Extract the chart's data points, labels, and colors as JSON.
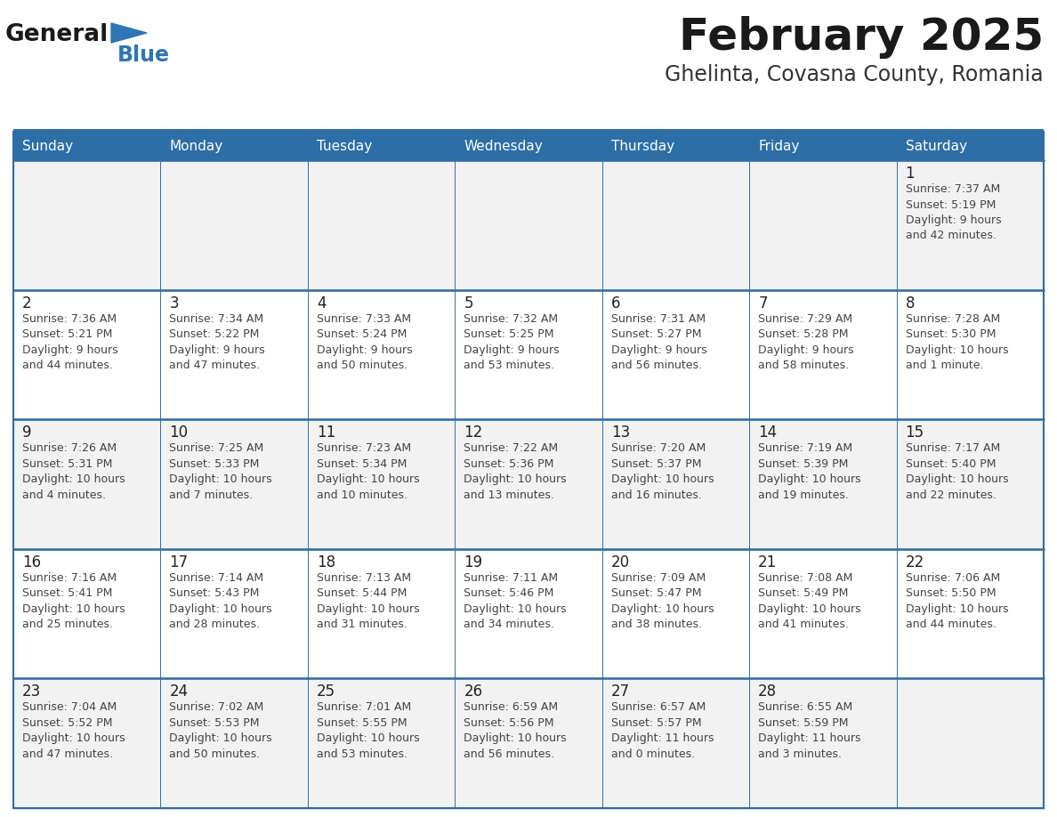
{
  "title": "February 2025",
  "subtitle": "Ghelinta, Covasna County, Romania",
  "header_bg_color": "#2E6EA6",
  "header_text_color": "#FFFFFF",
  "cell_bg_even": "#F2F2F2",
  "cell_bg_odd": "#FFFFFF",
  "border_color": "#2E6EA6",
  "day_names": [
    "Sunday",
    "Monday",
    "Tuesday",
    "Wednesday",
    "Thursday",
    "Friday",
    "Saturday"
  ],
  "title_color": "#1a1a1a",
  "subtitle_color": "#333333",
  "cell_text_color": "#444444",
  "day_num_color": "#222222",
  "logo_general_color": "#1a1a1a",
  "logo_blue_color": "#2E75B6",
  "calendar": [
    [
      null,
      null,
      null,
      null,
      null,
      null,
      {
        "day": 1,
        "sunrise": "7:37 AM",
        "sunset": "5:19 PM",
        "daylight": "9 hours\nand 42 minutes."
      }
    ],
    [
      {
        "day": 2,
        "sunrise": "7:36 AM",
        "sunset": "5:21 PM",
        "daylight": "9 hours\nand 44 minutes."
      },
      {
        "day": 3,
        "sunrise": "7:34 AM",
        "sunset": "5:22 PM",
        "daylight": "9 hours\nand 47 minutes."
      },
      {
        "day": 4,
        "sunrise": "7:33 AM",
        "sunset": "5:24 PM",
        "daylight": "9 hours\nand 50 minutes."
      },
      {
        "day": 5,
        "sunrise": "7:32 AM",
        "sunset": "5:25 PM",
        "daylight": "9 hours\nand 53 minutes."
      },
      {
        "day": 6,
        "sunrise": "7:31 AM",
        "sunset": "5:27 PM",
        "daylight": "9 hours\nand 56 minutes."
      },
      {
        "day": 7,
        "sunrise": "7:29 AM",
        "sunset": "5:28 PM",
        "daylight": "9 hours\nand 58 minutes."
      },
      {
        "day": 8,
        "sunrise": "7:28 AM",
        "sunset": "5:30 PM",
        "daylight": "10 hours\nand 1 minute."
      }
    ],
    [
      {
        "day": 9,
        "sunrise": "7:26 AM",
        "sunset": "5:31 PM",
        "daylight": "10 hours\nand 4 minutes."
      },
      {
        "day": 10,
        "sunrise": "7:25 AM",
        "sunset": "5:33 PM",
        "daylight": "10 hours\nand 7 minutes."
      },
      {
        "day": 11,
        "sunrise": "7:23 AM",
        "sunset": "5:34 PM",
        "daylight": "10 hours\nand 10 minutes."
      },
      {
        "day": 12,
        "sunrise": "7:22 AM",
        "sunset": "5:36 PM",
        "daylight": "10 hours\nand 13 minutes."
      },
      {
        "day": 13,
        "sunrise": "7:20 AM",
        "sunset": "5:37 PM",
        "daylight": "10 hours\nand 16 minutes."
      },
      {
        "day": 14,
        "sunrise": "7:19 AM",
        "sunset": "5:39 PM",
        "daylight": "10 hours\nand 19 minutes."
      },
      {
        "day": 15,
        "sunrise": "7:17 AM",
        "sunset": "5:40 PM",
        "daylight": "10 hours\nand 22 minutes."
      }
    ],
    [
      {
        "day": 16,
        "sunrise": "7:16 AM",
        "sunset": "5:41 PM",
        "daylight": "10 hours\nand 25 minutes."
      },
      {
        "day": 17,
        "sunrise": "7:14 AM",
        "sunset": "5:43 PM",
        "daylight": "10 hours\nand 28 minutes."
      },
      {
        "day": 18,
        "sunrise": "7:13 AM",
        "sunset": "5:44 PM",
        "daylight": "10 hours\nand 31 minutes."
      },
      {
        "day": 19,
        "sunrise": "7:11 AM",
        "sunset": "5:46 PM",
        "daylight": "10 hours\nand 34 minutes."
      },
      {
        "day": 20,
        "sunrise": "7:09 AM",
        "sunset": "5:47 PM",
        "daylight": "10 hours\nand 38 minutes."
      },
      {
        "day": 21,
        "sunrise": "7:08 AM",
        "sunset": "5:49 PM",
        "daylight": "10 hours\nand 41 minutes."
      },
      {
        "day": 22,
        "sunrise": "7:06 AM",
        "sunset": "5:50 PM",
        "daylight": "10 hours\nand 44 minutes."
      }
    ],
    [
      {
        "day": 23,
        "sunrise": "7:04 AM",
        "sunset": "5:52 PM",
        "daylight": "10 hours\nand 47 minutes."
      },
      {
        "day": 24,
        "sunrise": "7:02 AM",
        "sunset": "5:53 PM",
        "daylight": "10 hours\nand 50 minutes."
      },
      {
        "day": 25,
        "sunrise": "7:01 AM",
        "sunset": "5:55 PM",
        "daylight": "10 hours\nand 53 minutes."
      },
      {
        "day": 26,
        "sunrise": "6:59 AM",
        "sunset": "5:56 PM",
        "daylight": "10 hours\nand 56 minutes."
      },
      {
        "day": 27,
        "sunrise": "6:57 AM",
        "sunset": "5:57 PM",
        "daylight": "11 hours\nand 0 minutes."
      },
      {
        "day": 28,
        "sunrise": "6:55 AM",
        "sunset": "5:59 PM",
        "daylight": "11 hours\nand 3 minutes."
      },
      null
    ]
  ]
}
